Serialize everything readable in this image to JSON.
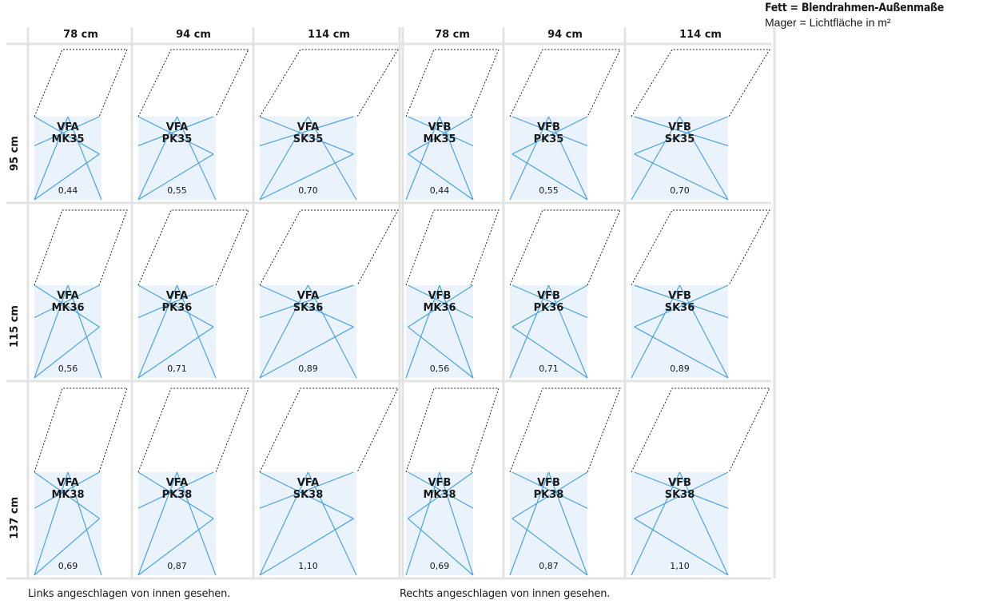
{
  "legend": {
    "bold_line": "Fett = Blendrahmen-Außenmaße",
    "thin_line": "Mager = Lichtfläche in m²"
  },
  "column_headers": [
    "78 cm",
    "94 cm",
    "114 cm"
  ],
  "row_headers": [
    "95 cm",
    "115 cm",
    "137 cm"
  ],
  "panels": [
    {
      "name": "left",
      "prefix": "VFA",
      "caption": "Links angeschlagen von innen gesehen.",
      "cells": [
        [
          {
            "code": "MK35",
            "area": "0,44"
          },
          {
            "code": "PK35",
            "area": "0,55"
          },
          {
            "code": "SK35",
            "area": "0,70"
          }
        ],
        [
          {
            "code": "MK36",
            "area": "0,56"
          },
          {
            "code": "PK36",
            "area": "0,71"
          },
          {
            "code": "SK36",
            "area": "0,89"
          }
        ],
        [
          {
            "code": "MK38",
            "area": "0,69"
          },
          {
            "code": "PK38",
            "area": "0,87"
          },
          {
            "code": "SK38",
            "area": "1,10"
          }
        ]
      ]
    },
    {
      "name": "right",
      "prefix": "VFB",
      "caption": "Rechts angeschlagen von innen gesehen.",
      "cells": [
        [
          {
            "code": "MK35",
            "area": "0,44"
          },
          {
            "code": "PK35",
            "area": "0,55"
          },
          {
            "code": "SK35",
            "area": "0,70"
          }
        ],
        [
          {
            "code": "MK36",
            "area": "0,56"
          },
          {
            "code": "PK36",
            "area": "0,71"
          },
          {
            "code": "SK36",
            "area": "0,89"
          }
        ],
        [
          {
            "code": "MK38",
            "area": "0,69"
          },
          {
            "code": "PK38",
            "area": "0,87"
          },
          {
            "code": "SK38",
            "area": "1,10"
          }
        ]
      ]
    }
  ],
  "colors": {
    "grid": "#e3e3e3",
    "pane_fill": "#eaf3fc",
    "sash_line": "#4aa3df",
    "dashed_line": "#222222",
    "text": "#1a1a1a"
  }
}
